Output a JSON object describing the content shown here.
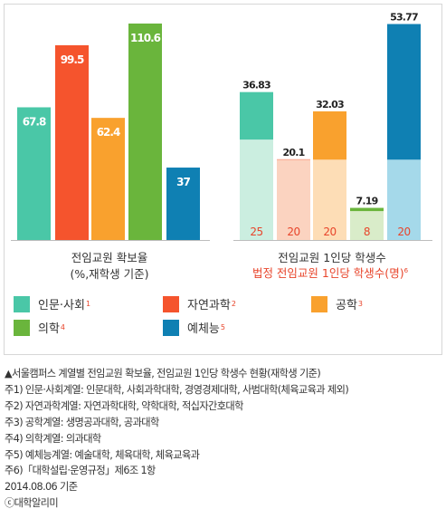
{
  "chart_data": [
    {
      "type": "bar",
      "title": "전임교원 확보율",
      "subtitle": "(%,재학생 기준)",
      "categories": [
        "인문·사회",
        "자연과학",
        "공학",
        "의학",
        "예체능"
      ],
      "values": [
        67.8,
        99.5,
        62.4,
        110.6,
        37
      ],
      "value_labels": [
        "67.8",
        "99.5",
        "62.4",
        "110.6",
        "37"
      ],
      "colors": [
        "#4ac7a7",
        "#f5542d",
        "#f9a12e",
        "#6ab53c",
        "#0f80b3"
      ],
      "ylim": [
        0,
        118
      ],
      "grid": false
    },
    {
      "type": "bar",
      "title": "전임교원 1인당 학생수",
      "subtitle": "법정 전임교원 1인당 학생수(명)",
      "subtitle_sup": "6",
      "categories": [
        "인문·사회",
        "자연과학",
        "공학",
        "의학",
        "예체능"
      ],
      "series": [
        {
          "values": [
            36.83,
            20.1,
            32.03,
            7.19,
            53.77
          ],
          "labels": [
            "36.83",
            "20.1",
            "32.03",
            "7.19",
            "53.77"
          ]
        },
        {
          "values": [
            25,
            20,
            20,
            8,
            20
          ],
          "labels": [
            "25",
            "20",
            "20",
            "8",
            "20"
          ]
        }
      ],
      "colors": [
        "#4ac7a7",
        "#f5542d",
        "#f9a12e",
        "#6ab53c",
        "#0f80b3"
      ],
      "light_colors": [
        "#cbeee0",
        "#fbd3c0",
        "#fdddb6",
        "#d9ecc9",
        "#a5d9ea"
      ],
      "ylim": [
        0,
        57.5
      ],
      "grid": false
    }
  ],
  "legend": [
    {
      "label": "인문·사회",
      "sup": "1",
      "color": "#4ac7a7"
    },
    {
      "label": "자연과학",
      "sup": "2",
      "color": "#f5542d"
    },
    {
      "label": "공학",
      "sup": "3",
      "color": "#f9a12e"
    },
    {
      "label": "의학",
      "sup": "4",
      "color": "#6ab53c"
    },
    {
      "label": "예체능",
      "sup": "5",
      "color": "#0f80b3"
    }
  ],
  "notes": [
    "▲서울캠퍼스 계열별 전임교원 확보율, 전임교원 1인당 학생수 현황(재학생 기준)",
    "주1) 인문·사회계열: 인문대학, 사회과학대학, 경영경제대학, 사범대학(체육교육과 제외)",
    "주2) 자연과학계열: 자연과학대학, 약학대학, 적십자간호대학",
    "주3) 공학계열: 생명공과대학, 공과대학",
    "주4) 의학계열: 의과대학",
    "주5) 예체능계열: 예술대학, 체육대학, 체육교육과",
    "주6)「대학설립·운영규정」제6조 1항",
    "2014.08.06 기준",
    "ⓒ대학알리미"
  ]
}
